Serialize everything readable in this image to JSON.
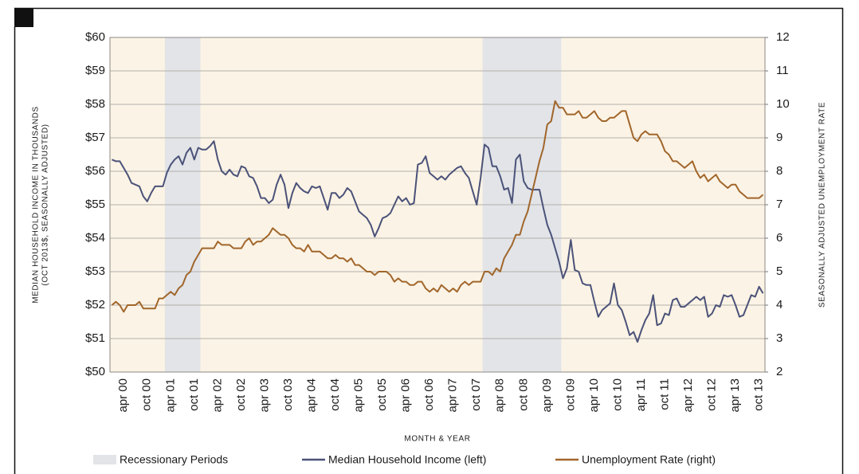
{
  "chart_data": {
    "type": "line",
    "ylabel": [
      "MEDIAN HOUSEHOLD INCOME IN THOUSANDS",
      "(OCT 2013$, SEASONALLY ADJUSTED)"
    ],
    "y2label": "SEASONALLY ADJUSTED UNEMPLOYMENT RATE",
    "xlabel": "MONTH & YEAR",
    "categories": [
      null,
      null,
      null,
      "apr 00",
      null,
      null,
      null,
      null,
      null,
      "oct 00",
      null,
      null,
      null,
      null,
      null,
      "apr 01",
      null,
      null,
      null,
      null,
      null,
      "oct 01",
      null,
      null,
      null,
      null,
      null,
      "apr 02",
      null,
      null,
      null,
      null,
      null,
      "oct 02",
      null,
      null,
      null,
      null,
      null,
      "apr 03",
      null,
      null,
      null,
      null,
      null,
      "oct 03",
      null,
      null,
      null,
      null,
      null,
      "apr 04",
      null,
      null,
      null,
      null,
      null,
      "oct 04",
      null,
      null,
      null,
      null,
      null,
      "apr 05",
      null,
      null,
      null,
      null,
      null,
      "oct 05",
      null,
      null,
      null,
      null,
      null,
      "apr 06",
      null,
      null,
      null,
      null,
      null,
      "oct 06",
      null,
      null,
      null,
      null,
      null,
      "apr 07",
      null,
      null,
      null,
      null,
      null,
      "oct 07",
      null,
      null,
      null,
      null,
      null,
      "apr 08",
      null,
      null,
      null,
      null,
      null,
      "oct 08",
      null,
      null,
      null,
      null,
      null,
      "apr 09",
      null,
      null,
      null,
      null,
      null,
      "oct 09",
      null,
      null,
      null,
      null,
      null,
      "apr 10",
      null,
      null,
      null,
      null,
      null,
      "oct 10",
      null,
      null,
      null,
      null,
      null,
      "apr 11",
      null,
      null,
      null,
      null,
      null,
      "oct 11",
      null,
      null,
      null,
      null,
      null,
      "apr 12",
      null,
      null,
      null,
      null,
      null,
      "oct 12",
      null,
      null,
      null,
      null,
      null,
      "apr 13",
      null,
      null,
      null,
      null,
      null,
      "oct 13",
      null
    ],
    "series": [
      {
        "name": "Recessionary Periods",
        "type": "band",
        "color": "#e2e4e8",
        "values": [
          0,
          0,
          0,
          0,
          0,
          0,
          0,
          0,
          0,
          0,
          0,
          0,
          0,
          0,
          1,
          1,
          1,
          1,
          1,
          1,
          1,
          1,
          1,
          0,
          0,
          0,
          0,
          0,
          0,
          0,
          0,
          0,
          0,
          0,
          0,
          0,
          0,
          0,
          0,
          0,
          0,
          0,
          0,
          0,
          0,
          0,
          0,
          0,
          0,
          0,
          0,
          0,
          0,
          0,
          0,
          0,
          0,
          0,
          0,
          0,
          0,
          0,
          0,
          0,
          0,
          0,
          0,
          0,
          0,
          0,
          0,
          0,
          0,
          0,
          0,
          0,
          0,
          0,
          0,
          0,
          0,
          0,
          0,
          0,
          0,
          0,
          0,
          0,
          0,
          0,
          0,
          0,
          0,
          0,
          0,
          1,
          1,
          1,
          1,
          1,
          1,
          1,
          1,
          1,
          1,
          1,
          1,
          1,
          1,
          1,
          1,
          1,
          1,
          1,
          1,
          0,
          0,
          0,
          0,
          0,
          0,
          0,
          0,
          0,
          0,
          0,
          0,
          0,
          0,
          0,
          0,
          0,
          0,
          0,
          0,
          0,
          0,
          0,
          0,
          0,
          0,
          0,
          0,
          0,
          0,
          0,
          0,
          0,
          0,
          0,
          0,
          0,
          0,
          0,
          0,
          0,
          0,
          0,
          0,
          0,
          0,
          0,
          0,
          0,
          0,
          0,
          0
        ]
      },
      {
        "name": "Median Household Income (left)",
        "type": "line",
        "color": "#4b5279",
        "values": [
          56.35,
          56.3,
          56.3,
          56.1,
          55.9,
          55.65,
          55.6,
          55.55,
          55.25,
          55.1,
          55.35,
          55.55,
          55.55,
          55.55,
          55.95,
          56.2,
          56.35,
          56.45,
          56.2,
          56.55,
          56.7,
          56.35,
          56.7,
          56.65,
          56.65,
          56.75,
          56.9,
          56.35,
          56.0,
          55.9,
          56.05,
          55.9,
          55.85,
          56.15,
          56.1,
          55.85,
          55.8,
          55.55,
          55.2,
          55.2,
          55.05,
          55.15,
          55.6,
          55.9,
          55.6,
          54.9,
          55.35,
          55.65,
          55.5,
          55.4,
          55.35,
          55.55,
          55.5,
          55.55,
          55.2,
          54.85,
          55.35,
          55.35,
          55.2,
          55.3,
          55.5,
          55.4,
          55.1,
          54.8,
          54.7,
          54.6,
          54.4,
          54.05,
          54.3,
          54.6,
          54.65,
          54.75,
          55.0,
          55.25,
          55.1,
          55.2,
          55.0,
          55.05,
          56.2,
          56.25,
          56.45,
          55.95,
          55.85,
          55.75,
          55.85,
          55.75,
          55.9,
          56.0,
          56.1,
          56.15,
          55.95,
          55.8,
          55.4,
          55.0,
          55.8,
          56.8,
          56.7,
          56.15,
          56.15,
          55.85,
          55.45,
          55.5,
          55.05,
          56.35,
          56.5,
          55.7,
          55.5,
          55.45,
          55.45,
          55.45,
          54.9,
          54.4,
          54.1,
          53.7,
          53.3,
          52.8,
          53.1,
          53.95,
          53.05,
          53.0,
          52.65,
          52.6,
          52.6,
          52.1,
          51.65,
          51.85,
          51.95,
          52.05,
          52.65,
          52.0,
          51.85,
          51.5,
          51.1,
          51.2,
          50.9,
          51.25,
          51.55,
          51.75,
          52.3,
          51.4,
          51.45,
          51.75,
          51.7,
          52.15,
          52.2,
          51.95,
          51.95,
          52.05,
          52.15,
          52.25,
          52.15,
          52.25,
          51.65,
          51.75,
          52.0,
          51.95,
          52.3,
          52.25,
          52.3,
          52.0,
          51.65,
          51.7,
          52.0,
          52.3,
          52.25,
          52.55,
          52.35
        ]
      },
      {
        "name": "Unemployment Rate (right)",
        "type": "line",
        "axis": "y2",
        "color": "#a1662b",
        "values": [
          4.0,
          4.1,
          4.0,
          3.8,
          4.0,
          4.0,
          4.0,
          4.1,
          3.9,
          3.9,
          3.9,
          3.9,
          4.2,
          4.2,
          4.3,
          4.4,
          4.3,
          4.5,
          4.6,
          4.9,
          5.0,
          5.3,
          5.5,
          5.7,
          5.7,
          5.7,
          5.7,
          5.9,
          5.8,
          5.8,
          5.8,
          5.7,
          5.7,
          5.7,
          5.9,
          6.0,
          5.8,
          5.9,
          5.9,
          6.0,
          6.1,
          6.3,
          6.2,
          6.1,
          6.1,
          6.0,
          5.8,
          5.7,
          5.7,
          5.6,
          5.8,
          5.6,
          5.6,
          5.6,
          5.5,
          5.4,
          5.4,
          5.5,
          5.4,
          5.4,
          5.3,
          5.4,
          5.2,
          5.2,
          5.1,
          5.0,
          5.0,
          4.9,
          5.0,
          5.0,
          5.0,
          4.9,
          4.7,
          4.8,
          4.7,
          4.7,
          4.6,
          4.6,
          4.7,
          4.7,
          4.5,
          4.4,
          4.5,
          4.4,
          4.6,
          4.5,
          4.4,
          4.5,
          4.4,
          4.6,
          4.7,
          4.6,
          4.7,
          4.7,
          4.7,
          5.0,
          5.0,
          4.9,
          5.1,
          5.0,
          5.4,
          5.6,
          5.8,
          6.1,
          6.1,
          6.5,
          6.8,
          7.3,
          7.8,
          8.3,
          8.7,
          9.4,
          9.5,
          10.1,
          9.9,
          9.9,
          9.7,
          9.7,
          9.7,
          9.8,
          9.6,
          9.6,
          9.7,
          9.8,
          9.6,
          9.5,
          9.5,
          9.6,
          9.6,
          9.7,
          9.8,
          9.8,
          9.4,
          9.0,
          8.9,
          9.1,
          9.2,
          9.1,
          9.1,
          9.1,
          8.9,
          8.6,
          8.5,
          8.3,
          8.3,
          8.2,
          8.1,
          8.2,
          8.3,
          8.0,
          7.8,
          7.9,
          7.7,
          7.8,
          7.9,
          7.7,
          7.6,
          7.5,
          7.6,
          7.6,
          7.4,
          7.3,
          7.2,
          7.2,
          7.2,
          7.2,
          7.3
        ]
      }
    ],
    "ylim": [
      50,
      60
    ],
    "yticks": [
      {
        "value": 50,
        "label": "$50"
      },
      {
        "value": 51,
        "label": "$51"
      },
      {
        "value": 52,
        "label": "$52"
      },
      {
        "value": 53,
        "label": "$53"
      },
      {
        "value": 54,
        "label": "$54"
      },
      {
        "value": 55,
        "label": "$55"
      },
      {
        "value": 56,
        "label": "$56"
      },
      {
        "value": 57,
        "label": "$57"
      },
      {
        "value": 58,
        "label": "$58"
      },
      {
        "value": 59,
        "label": "$59"
      },
      {
        "value": 60,
        "label": "$60"
      }
    ],
    "y2lim": [
      2,
      12
    ],
    "y2ticks": [
      2,
      3,
      4,
      5,
      6,
      7,
      8,
      9,
      10,
      11,
      12
    ],
    "grid": true,
    "background": "#fbf3e5",
    "legend": "bottom"
  }
}
